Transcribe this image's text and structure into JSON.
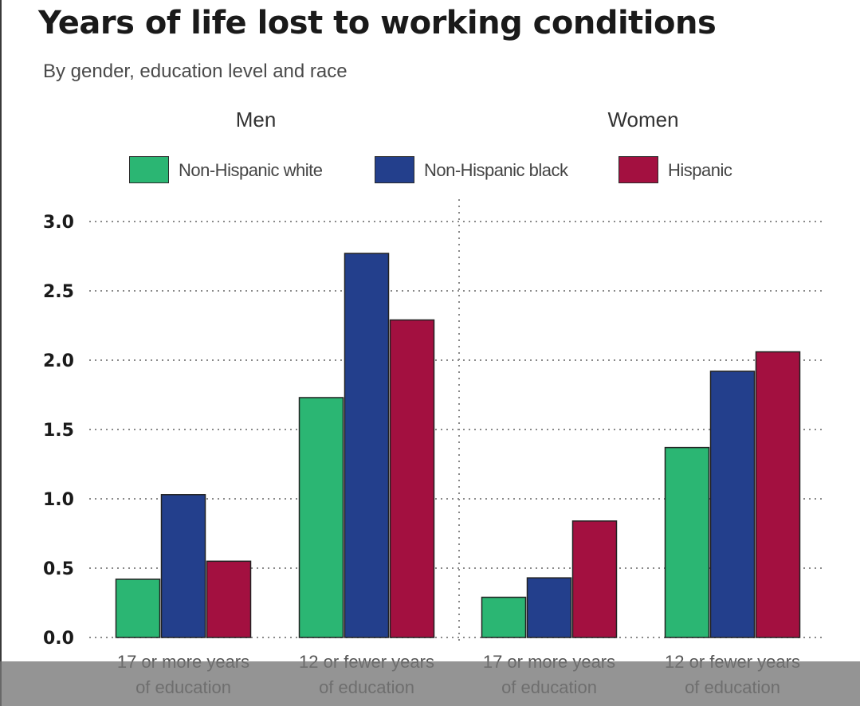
{
  "title": "Years of life lost to working conditions",
  "subtitle": "By gender, education level and race",
  "colors": {
    "Non-Hispanic white": "#2bb673",
    "Non-Hispanic black": "#233f8c",
    "Hispanic": "#a31040",
    "grid": "#8a8a8a"
  },
  "chart_data": {
    "type": "bar",
    "title": "Years of life lost to working conditions",
    "subtitle": "By gender, education level and race",
    "xlabel": "",
    "ylabel": "",
    "ylim": [
      0,
      3.0
    ],
    "yticks": [
      "0.0",
      "0.5",
      "1.0",
      "1.5",
      "2.0",
      "2.5",
      "3.0"
    ],
    "ytick_values": [
      0,
      0.5,
      1.0,
      1.5,
      2.0,
      2.5,
      3.0
    ],
    "grid": true,
    "legend": [
      "Non-Hispanic white",
      "Non-Hispanic black",
      "Hispanic"
    ],
    "legend_placement": "top",
    "panels": [
      {
        "name": "Men",
        "categories": [
          "17 or more years\nof education",
          "12 or fewer years\nof education"
        ],
        "series": [
          {
            "name": "Non-Hispanic white",
            "values": [
              0.42,
              1.73
            ]
          },
          {
            "name": "Non-Hispanic black",
            "values": [
              1.03,
              2.77
            ]
          },
          {
            "name": "Hispanic",
            "values": [
              0.55,
              2.29
            ]
          }
        ]
      },
      {
        "name": "Women",
        "categories": [
          "17 or more years\nof education",
          "12 or fewer years\nof education"
        ],
        "series": [
          {
            "name": "Non-Hispanic white",
            "values": [
              0.29,
              1.37
            ]
          },
          {
            "name": "Non-Hispanic black",
            "values": [
              0.43,
              1.92
            ]
          },
          {
            "name": "Hispanic",
            "values": [
              0.84,
              2.06
            ]
          }
        ]
      }
    ]
  }
}
